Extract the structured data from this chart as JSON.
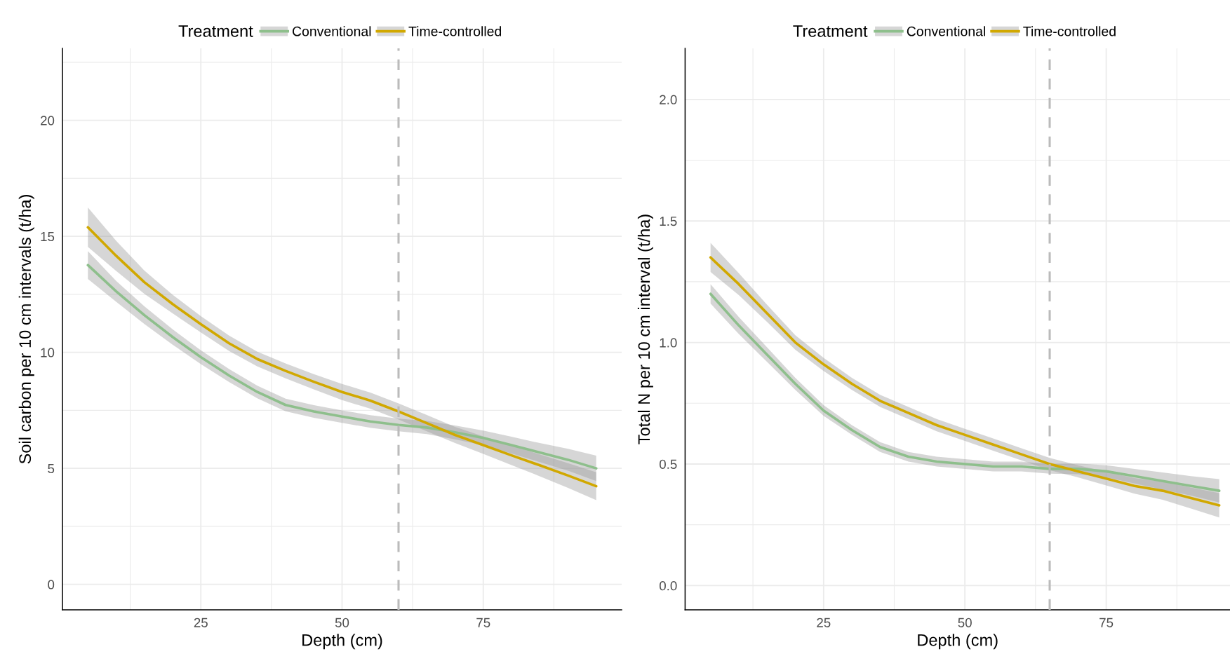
{
  "chart_data": [
    {
      "type": "line",
      "xlabel": "Depth (cm)",
      "ylabel": "Soil carbon per 10 cm intervals (t/ha)",
      "legend_title": "Treatment",
      "legend": "top",
      "grid": true,
      "x": [
        5,
        10,
        15,
        20,
        25,
        30,
        35,
        40,
        45,
        50,
        55,
        60,
        65,
        70,
        75,
        80,
        85,
        90,
        95
      ],
      "series": [
        {
          "name": "Conventional",
          "color": "#8ebf8c",
          "values": [
            13.76,
            12.63,
            11.6,
            10.66,
            9.79,
            9.0,
            8.29,
            7.73,
            7.45,
            7.23,
            7.02,
            6.87,
            6.76,
            6.55,
            6.31,
            6.0,
            5.68,
            5.37,
            5.0
          ],
          "upper": [
            14.36,
            13.08,
            11.98,
            10.99,
            10.09,
            9.28,
            8.56,
            8.0,
            7.72,
            7.5,
            7.29,
            7.14,
            7.04,
            6.85,
            6.63,
            6.36,
            6.09,
            5.84,
            5.55
          ],
          "lower": [
            13.16,
            12.18,
            11.22,
            10.33,
            9.49,
            8.72,
            8.02,
            7.46,
            7.18,
            6.96,
            6.75,
            6.6,
            6.48,
            6.25,
            5.99,
            5.64,
            5.27,
            4.9,
            4.45
          ]
        },
        {
          "name": "Time-controlled",
          "color": "#d1a800",
          "values": [
            15.39,
            14.16,
            13.02,
            12.08,
            11.21,
            10.39,
            9.71,
            9.2,
            8.73,
            8.29,
            7.92,
            7.45,
            6.95,
            6.44,
            6.0,
            5.56,
            5.13,
            4.69,
            4.23
          ],
          "upper": [
            16.24,
            14.81,
            13.52,
            12.48,
            11.56,
            10.72,
            10.03,
            9.52,
            9.06,
            8.64,
            8.27,
            7.8,
            7.3,
            6.79,
            6.38,
            5.98,
            5.6,
            5.22,
            4.83
          ],
          "lower": [
            14.54,
            13.51,
            12.52,
            11.68,
            10.86,
            10.06,
            9.39,
            8.88,
            8.4,
            7.94,
            7.57,
            7.1,
            6.6,
            6.09,
            5.62,
            5.14,
            4.66,
            4.16,
            3.63
          ]
        }
      ],
      "xlim": [
        0.5,
        99.5
      ],
      "ylim": [
        -1.1,
        23.1
      ],
      "xticks": [
        {
          "value": 12.5,
          "label": null
        },
        25,
        {
          "value": 37.5,
          "label": null
        },
        50,
        {
          "value": 62.5,
          "label": null
        },
        75,
        {
          "value": 87.5,
          "label": null
        }
      ],
      "yticks": [
        0,
        {
          "value": 2.5,
          "label": null
        },
        5,
        {
          "value": 7.5,
          "label": null
        },
        10,
        {
          "value": 12.5,
          "label": null
        },
        15,
        {
          "value": 17.5,
          "label": null
        },
        20,
        {
          "value": 22.5,
          "label": null
        }
      ],
      "ref_lines": [
        {
          "axis": "x",
          "value": 60,
          "color": "#bbbbbb",
          "line_style": "dashed"
        }
      ]
    },
    {
      "type": "line",
      "xlabel": "Depth (cm)",
      "ylabel": "Total N per 10 cm interval (t/ha)",
      "legend_title": "Treatment",
      "legend": "top",
      "grid": true,
      "x": [
        5,
        10,
        15,
        20,
        25,
        30,
        35,
        40,
        45,
        50,
        55,
        60,
        65,
        70,
        75,
        80,
        85,
        90,
        95
      ],
      "series": [
        {
          "name": "Conventional",
          "color": "#8ebf8c",
          "values": [
            1.2,
            1.07,
            0.95,
            0.83,
            0.72,
            0.64,
            0.57,
            0.53,
            0.51,
            0.5,
            0.49,
            0.49,
            0.48,
            0.48,
            0.47,
            0.45,
            0.43,
            0.41,
            0.39
          ],
          "upper": [
            1.24,
            1.105,
            0.98,
            0.855,
            0.742,
            0.66,
            0.59,
            0.55,
            0.53,
            0.52,
            0.51,
            0.51,
            0.5,
            0.502,
            0.495,
            0.48,
            0.465,
            0.45,
            0.438
          ],
          "lower": [
            1.16,
            1.035,
            0.92,
            0.805,
            0.698,
            0.62,
            0.55,
            0.51,
            0.49,
            0.48,
            0.47,
            0.47,
            0.46,
            0.458,
            0.445,
            0.42,
            0.395,
            0.37,
            0.342
          ]
        },
        {
          "name": "Time-controlled",
          "color": "#d1a800",
          "values": [
            1.35,
            1.24,
            1.12,
            1.0,
            0.91,
            0.83,
            0.76,
            0.71,
            0.66,
            0.62,
            0.58,
            0.54,
            0.5,
            0.47,
            0.44,
            0.41,
            0.39,
            0.36,
            0.33
          ],
          "upper": [
            1.41,
            1.285,
            1.155,
            1.03,
            0.937,
            0.855,
            0.785,
            0.735,
            0.685,
            0.645,
            0.605,
            0.565,
            0.525,
            0.495,
            0.468,
            0.442,
            0.427,
            0.403,
            0.38
          ],
          "lower": [
            1.29,
            1.195,
            1.085,
            0.97,
            0.883,
            0.805,
            0.735,
            0.685,
            0.635,
            0.595,
            0.555,
            0.515,
            0.475,
            0.445,
            0.412,
            0.378,
            0.353,
            0.317,
            0.28
          ]
        }
      ],
      "xlim": [
        0.5,
        96.9
      ],
      "ylim": [
        -0.1,
        2.21
      ],
      "xticks": [
        {
          "value": 12.5,
          "label": null
        },
        25,
        {
          "value": 37.5,
          "label": null
        },
        50,
        {
          "value": 62.5,
          "label": null
        },
        75,
        {
          "value": 87.5,
          "label": null
        }
      ],
      "yticks": [
        {
          "value": 0,
          "label": "0.0"
        },
        {
          "value": 0.25,
          "label": null
        },
        {
          "value": 0.5,
          "label": "0.5"
        },
        {
          "value": 0.75,
          "label": null
        },
        {
          "value": 1,
          "label": "1.0"
        },
        {
          "value": 1.25,
          "label": null
        },
        {
          "value": 1.5,
          "label": "1.5"
        },
        {
          "value": 1.75,
          "label": null
        },
        {
          "value": 2,
          "label": "2.0"
        }
      ],
      "ref_lines": [
        {
          "axis": "x",
          "value": 65,
          "color": "#bbbbbb",
          "line_style": "dashed"
        }
      ]
    }
  ]
}
